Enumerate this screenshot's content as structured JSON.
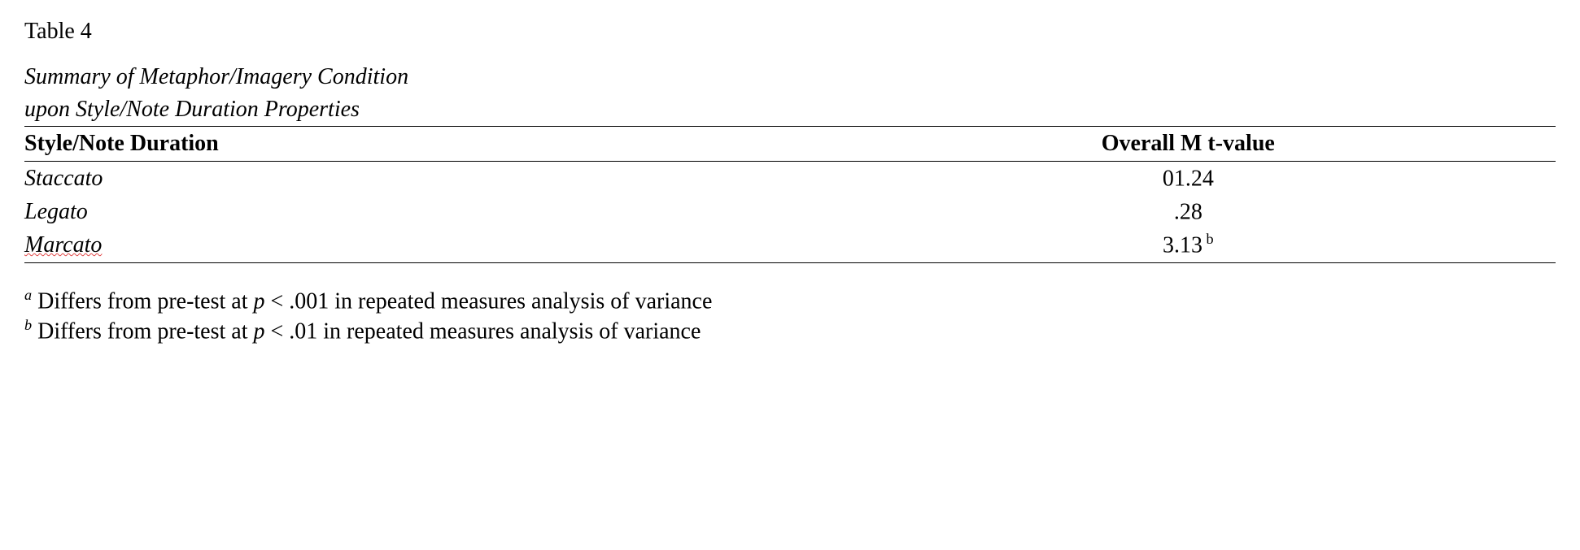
{
  "table": {
    "number_label": "Table 4",
    "caption_line1": "Summary of Metaphor/Imagery Condition",
    "caption_line2": "upon Style/Note Duration Properties",
    "columns": {
      "label": "Style/Note Duration",
      "value": "Overall M t-value"
    },
    "rows": [
      {
        "label": "Staccato",
        "value": "01.24",
        "sup": ""
      },
      {
        "label": "Legato",
        "value": ".28",
        "sup": ""
      },
      {
        "label": "Marcato",
        "value": "3.13",
        "sup": " b"
      }
    ],
    "footnotes": {
      "a": {
        "marker": "a",
        "pre": " Differs from pre-test at ",
        "p": "p",
        "post": " < .001 in repeated measures analysis of variance"
      },
      "b": {
        "marker": "b",
        "pre": " Differs from pre-test at ",
        "p": "p",
        "post": " < .01 in repeated measures analysis of variance"
      }
    }
  },
  "style": {
    "font_family": "Times New Roman",
    "font_size_pt": 21,
    "text_color": "#000000",
    "background_color": "#ffffff",
    "rule_color": "#000000",
    "spellcheck_underline_color": "#dc2828"
  }
}
